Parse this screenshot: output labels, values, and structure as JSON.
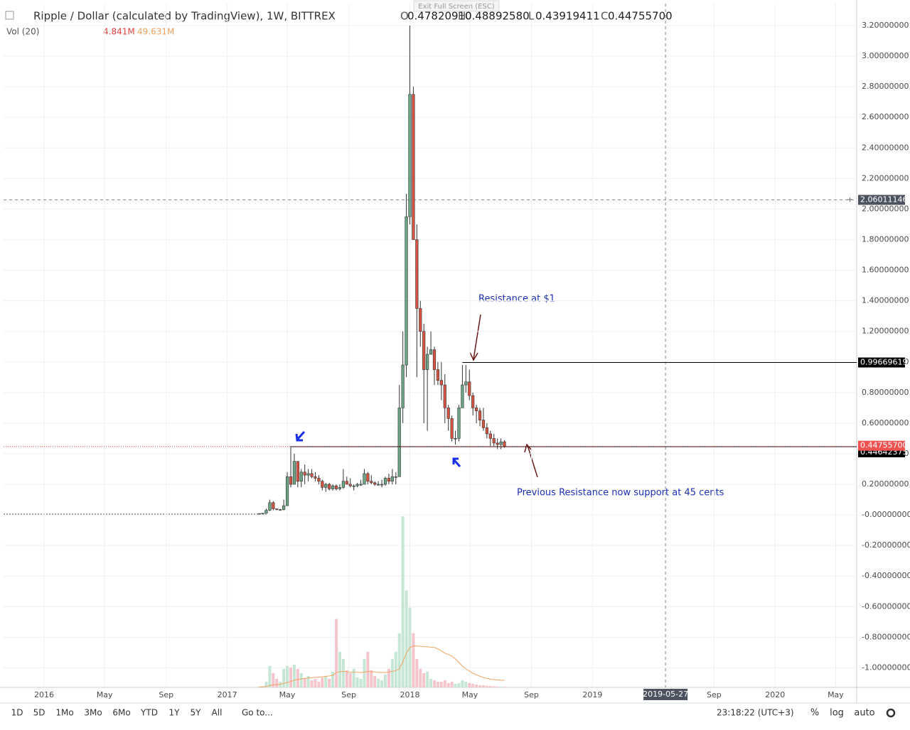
{
  "ui": {
    "exit_fullscreen": "Exit Full Screen (ESC)"
  },
  "chart_data": {
    "type": "candlestick",
    "title": "Ripple / Dollar (calculated by TradingView), 1W, BITTREX",
    "legend_keys": [
      "O",
      "H",
      "L",
      "C"
    ],
    "legend_values": [
      0.4782091,
      0.4889258,
      0.43919411,
      0.447557
    ],
    "legend_value_labels": [
      "0.47820910",
      "0.48892580",
      "0.43919411",
      "0.44755700"
    ],
    "volume_title": "Vol (20)",
    "volume_last": 4.841,
    "volume_last_label": "4.841M",
    "ma_last": 49.631,
    "ma_last_label": "49.631M",
    "xlim": [
      "2015-10-12",
      "2020-06-12"
    ],
    "xticks": [
      {
        "value": "2016-01-01",
        "label": "2016"
      },
      {
        "value": "2016-05-01",
        "label": "May"
      },
      {
        "value": "2016-09-01",
        "label": "Sep"
      },
      {
        "value": "2017-01-01",
        "label": "2017"
      },
      {
        "value": "2017-05-01",
        "label": "May"
      },
      {
        "value": "2017-09-01",
        "label": "Sep"
      },
      {
        "value": "2018-01-01",
        "label": "2018"
      },
      {
        "value": "2018-05-01",
        "label": "May"
      },
      {
        "value": "2018-09-01",
        "label": "Sep"
      },
      {
        "value": "2019-01-01",
        "label": "2019"
      },
      {
        "value": "2019-09-01",
        "label": "Sep"
      },
      {
        "value": "2020-01-01",
        "label": "2020"
      },
      {
        "value": "2020-05-01",
        "label": "May"
      }
    ],
    "ylim": [
      -1.128,
      3.344
    ],
    "yticks": [
      {
        "value": 3.2,
        "label": "3.20000000"
      },
      {
        "value": 3.0,
        "label": "3.00000000"
      },
      {
        "value": 2.8,
        "label": "2.80000000"
      },
      {
        "value": 2.6,
        "label": "2.60000000"
      },
      {
        "value": 2.4,
        "label": "2.40000000"
      },
      {
        "value": 2.2,
        "label": "2.20000000"
      },
      {
        "value": 2.0,
        "label": "2.00000000"
      },
      {
        "value": 1.8,
        "label": "1.80000000"
      },
      {
        "value": 1.6,
        "label": "1.60000000"
      },
      {
        "value": 1.4,
        "label": "1.40000000"
      },
      {
        "value": 1.2,
        "label": "1.20000000"
      },
      {
        "value": 1.0,
        "label": "1.00000000"
      },
      {
        "value": 0.8,
        "label": "0.80000000"
      },
      {
        "value": 0.6,
        "label": "0.60000000"
      },
      {
        "value": 0.4,
        "label": "0.40000000"
      },
      {
        "value": 0.2,
        "label": "0.20000000"
      },
      {
        "value": 0,
        "label": "-0.00000000"
      },
      {
        "value": -0.2,
        "label": "-0.20000000"
      },
      {
        "value": -0.4,
        "label": "-0.40000000"
      },
      {
        "value": -0.6,
        "label": "-0.60000000"
      },
      {
        "value": -0.8,
        "label": "-0.80000000"
      },
      {
        "value": -1.0,
        "label": "-1.00000000"
      }
    ],
    "grid": true,
    "up_color": "#6ba583",
    "down_color": "#d75442",
    "volume_up_color": "#c6e6d6",
    "volume_down_color": "#f5c5cc",
    "ma_color": "#f2a25c",
    "volume_lim": [
      0,
      1250
    ],
    "x": [
      "2017-03-06",
      "2017-03-13",
      "2017-03-20",
      "2017-03-27",
      "2017-04-03",
      "2017-04-10",
      "2017-04-17",
      "2017-04-24",
      "2017-05-01",
      "2017-05-08",
      "2017-05-15",
      "2017-05-22",
      "2017-05-29",
      "2017-06-05",
      "2017-06-12",
      "2017-06-19",
      "2017-06-26",
      "2017-07-03",
      "2017-07-10",
      "2017-07-17",
      "2017-07-24",
      "2017-07-31",
      "2017-08-07",
      "2017-08-14",
      "2017-08-21",
      "2017-08-28",
      "2017-09-04",
      "2017-09-11",
      "2017-09-18",
      "2017-09-25",
      "2017-10-02",
      "2017-10-09",
      "2017-10-16",
      "2017-10-23",
      "2017-10-30",
      "2017-11-06",
      "2017-11-13",
      "2017-11-20",
      "2017-11-27",
      "2017-12-04",
      "2017-12-11",
      "2017-12-18",
      "2017-12-25",
      "2018-01-01",
      "2018-01-08",
      "2018-01-15",
      "2018-01-22",
      "2018-01-29",
      "2018-02-05",
      "2018-02-12",
      "2018-02-19",
      "2018-02-26",
      "2018-03-05",
      "2018-03-12",
      "2018-03-19",
      "2018-03-26",
      "2018-04-02",
      "2018-04-09",
      "2018-04-16",
      "2018-04-23",
      "2018-04-30",
      "2018-05-07",
      "2018-05-14",
      "2018-05-21",
      "2018-05-28",
      "2018-06-04",
      "2018-06-11",
      "2018-06-18",
      "2018-06-25",
      "2018-07-02",
      "2018-07-09"
    ],
    "open": [
      0.007,
      0.009,
      0.011,
      0.03,
      0.08,
      0.04,
      0.035,
      0.035,
      0.06,
      0.25,
      0.2,
      0.35,
      0.22,
      0.28,
      0.26,
      0.27,
      0.25,
      0.24,
      0.22,
      0.18,
      0.2,
      0.17,
      0.19,
      0.17,
      0.18,
      0.22,
      0.2,
      0.19,
      0.19,
      0.2,
      0.2,
      0.27,
      0.22,
      0.21,
      0.2,
      0.2,
      0.2,
      0.24,
      0.22,
      0.25,
      0.25,
      0.7,
      0.98,
      1.95,
      2.75,
      1.8,
      1.35,
      1.2,
      0.95,
      1.05,
      1.08,
      0.95,
      0.88,
      0.85,
      0.7,
      0.63,
      0.5,
      0.5,
      0.7,
      0.85,
      0.87,
      0.78,
      0.7,
      0.68,
      0.62,
      0.57,
      0.53,
      0.5,
      0.47,
      0.46,
      0.4782091
    ],
    "high": [
      0.01,
      0.012,
      0.04,
      0.1,
      0.09,
      0.04,
      0.04,
      0.1,
      0.28,
      0.45,
      0.4,
      0.35,
      0.3,
      0.33,
      0.3,
      0.3,
      0.28,
      0.26,
      0.23,
      0.21,
      0.21,
      0.2,
      0.2,
      0.2,
      0.3,
      0.25,
      0.24,
      0.2,
      0.21,
      0.23,
      0.3,
      0.28,
      0.26,
      0.22,
      0.22,
      0.23,
      0.25,
      0.27,
      0.3,
      0.28,
      0.85,
      1.2,
      2.1,
      3.2,
      2.8,
      1.9,
      1.4,
      1.25,
      1.1,
      1.2,
      1.1,
      1.0,
      1.0,
      0.92,
      0.72,
      0.65,
      0.55,
      0.72,
      0.98,
      0.98,
      0.95,
      0.8,
      0.72,
      0.7,
      0.7,
      0.6,
      0.55,
      0.53,
      0.5,
      0.5,
      0.4889258
    ],
    "low": [
      0.006,
      0.008,
      0.01,
      0.025,
      0.03,
      0.03,
      0.03,
      0.03,
      0.06,
      0.18,
      0.2,
      0.18,
      0.18,
      0.2,
      0.22,
      0.24,
      0.22,
      0.2,
      0.16,
      0.15,
      0.16,
      0.16,
      0.16,
      0.16,
      0.17,
      0.2,
      0.18,
      0.16,
      0.18,
      0.19,
      0.2,
      0.2,
      0.2,
      0.19,
      0.19,
      0.18,
      0.19,
      0.2,
      0.2,
      0.2,
      0.25,
      0.6,
      0.9,
      1.9,
      1.8,
      0.9,
      1.1,
      0.6,
      0.55,
      1.05,
      0.85,
      0.85,
      0.75,
      0.6,
      0.55,
      0.48,
      0.46,
      0.48,
      0.7,
      0.8,
      0.75,
      0.65,
      0.6,
      0.58,
      0.55,
      0.5,
      0.45,
      0.45,
      0.43,
      0.43,
      0.43919411
    ],
    "close": [
      0.009,
      0.011,
      0.03,
      0.08,
      0.04,
      0.035,
      0.035,
      0.06,
      0.25,
      0.2,
      0.35,
      0.22,
      0.28,
      0.26,
      0.27,
      0.25,
      0.24,
      0.22,
      0.18,
      0.2,
      0.17,
      0.19,
      0.17,
      0.18,
      0.22,
      0.2,
      0.19,
      0.19,
      0.2,
      0.2,
      0.27,
      0.22,
      0.21,
      0.2,
      0.2,
      0.2,
      0.24,
      0.22,
      0.25,
      0.25,
      0.7,
      0.98,
      1.95,
      2.75,
      1.8,
      1.35,
      1.2,
      0.95,
      1.05,
      1.08,
      0.95,
      0.88,
      0.85,
      0.7,
      0.63,
      0.5,
      0.5,
      0.7,
      0.85,
      0.87,
      0.78,
      0.7,
      0.68,
      0.62,
      0.57,
      0.53,
      0.5,
      0.47,
      0.46,
      0.478,
      0.447557
    ],
    "volume": [
      5,
      8,
      40,
      150,
      100,
      60,
      40,
      130,
      150,
      140,
      160,
      130,
      100,
      60,
      80,
      50,
      60,
      40,
      70,
      80,
      60,
      110,
      480,
      250,
      200,
      120,
      100,
      130,
      70,
      60,
      200,
      250,
      120,
      80,
      60,
      50,
      90,
      130,
      200,
      250,
      380,
      1200,
      680,
      560,
      380,
      200,
      130,
      100,
      110,
      60,
      50,
      40,
      40,
      50,
      30,
      40,
      25,
      30,
      50,
      40,
      30,
      25,
      20,
      15,
      15,
      12,
      10,
      8,
      6,
      5,
      4.841
    ],
    "ma": [
      3,
      4,
      6,
      13,
      18,
      20,
      22,
      28,
      35,
      42,
      50,
      56,
      60,
      63,
      66,
      68,
      71,
      72,
      75,
      78,
      80,
      84,
      105,
      110,
      112,
      110,
      108,
      108,
      106,
      104,
      107,
      112,
      110,
      108,
      106,
      105,
      104,
      108,
      112,
      118,
      130,
      180,
      240,
      280,
      290,
      290,
      288,
      286,
      285,
      282,
      280,
      270,
      255,
      240,
      230,
      220,
      200,
      175,
      150,
      130,
      115,
      100,
      88,
      78,
      70,
      63,
      58,
      54,
      52,
      50.5,
      49.631
    ],
    "resistance": {
      "value": 0.99669619,
      "label": "0.99669619",
      "from": "2018-04-16"
    },
    "support": {
      "value": 0.44642375,
      "label": "0.44642375",
      "from": "2017-05-08"
    },
    "last_price": {
      "value": 0.447557,
      "label": "0.44755700"
    },
    "crosshair": {
      "x": "2019-05-27",
      "x_label": "2019-05-27",
      "y": 2.06011146,
      "y_label": "2.06011146"
    },
    "annotations": [
      "Resistance at $1",
      "Previous Resistance now support at 45 cents"
    ]
  },
  "toolbar": {
    "intervals": [
      "1D",
      "5D",
      "1Mo",
      "3Mo",
      "6Mo",
      "YTD",
      "1Y",
      "5Y",
      "All"
    ],
    "goto": "Go to...",
    "clock": "23:18:22 (UTC+3)",
    "options": [
      "%",
      "log",
      "auto"
    ]
  }
}
